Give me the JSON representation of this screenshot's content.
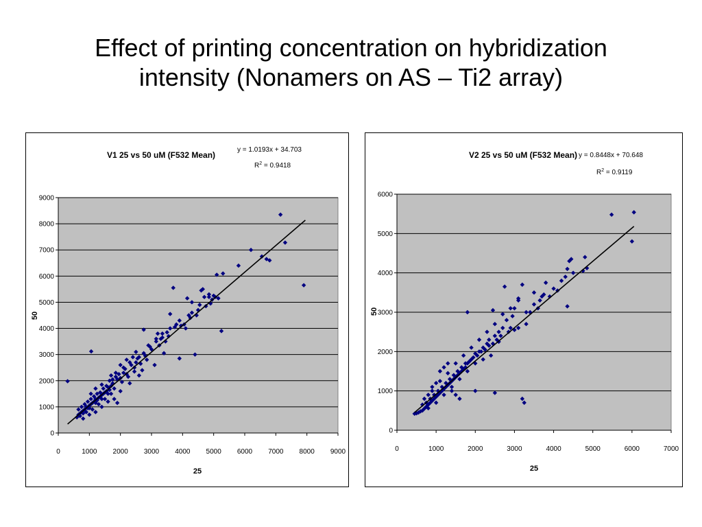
{
  "slide": {
    "title_line1": "Effect of printing concentration on hybridization",
    "title_line2": "intensity (Nonamers on AS – Ti2 array)"
  },
  "colors": {
    "plot_bg": "#c0c0c0",
    "marker": "#000080",
    "trendline": "#000000",
    "gridline": "#000000"
  },
  "chart_data": [
    {
      "type": "scatter",
      "title": "V1 25 vs 50 uM (F532 Mean)",
      "equation": "y = 1.0193x + 34.703",
      "r2_label": "R",
      "r2_sup": "2",
      "r2_value": " = 0.9418",
      "xlabel": "25",
      "ylabel": "50",
      "xlim": [
        0,
        9000
      ],
      "ylim": [
        0,
        9000
      ],
      "xticks": [
        "0",
        "1000",
        "2000",
        "3000",
        "4000",
        "5000",
        "6000",
        "7000",
        "8000",
        "9000"
      ],
      "yticks": [
        "0",
        "1000",
        "2000",
        "3000",
        "4000",
        "5000",
        "6000",
        "7000",
        "8000",
        "9000"
      ],
      "grid": "horizontal",
      "legend": "none",
      "trendline": {
        "slope": 1.0193,
        "intercept": 34.703,
        "x_range": [
          300,
          7950
        ]
      },
      "points": [
        [
          300,
          1980
        ],
        [
          1060,
          3120
        ],
        [
          7150,
          8350
        ],
        [
          7900,
          5650
        ],
        [
          7300,
          7280
        ],
        [
          6200,
          7000
        ],
        [
          6550,
          6750
        ],
        [
          6700,
          6650
        ],
        [
          6800,
          6600
        ],
        [
          5800,
          6400
        ],
        [
          5100,
          6050
        ],
        [
          5300,
          6100
        ],
        [
          5250,
          3900
        ],
        [
          4400,
          3000
        ],
        [
          3900,
          2850
        ],
        [
          3700,
          5550
        ],
        [
          4600,
          5450
        ],
        [
          4850,
          5300
        ],
        [
          4650,
          5500
        ],
        [
          4850,
          5200
        ],
        [
          5000,
          5250
        ],
        [
          5150,
          5150
        ],
        [
          4700,
          5200
        ],
        [
          4900,
          4950
        ],
        [
          4200,
          4500
        ],
        [
          4300,
          5000
        ],
        [
          4500,
          4700
        ],
        [
          4150,
          5150
        ],
        [
          4050,
          4150
        ],
        [
          4100,
          4000
        ],
        [
          3800,
          4150
        ],
        [
          3600,
          4550
        ],
        [
          3500,
          3850
        ],
        [
          3350,
          3800
        ],
        [
          3200,
          3800
        ],
        [
          3150,
          3600
        ],
        [
          3000,
          3200
        ],
        [
          2800,
          2950
        ],
        [
          2750,
          3950
        ],
        [
          2600,
          2900
        ],
        [
          2500,
          2700
        ],
        [
          2450,
          2500
        ],
        [
          2300,
          2700
        ],
        [
          2200,
          2250
        ],
        [
          2100,
          2300
        ],
        [
          2000,
          2100
        ],
        [
          1900,
          2050
        ],
        [
          1850,
          2150
        ],
        [
          1750,
          1900
        ],
        [
          1700,
          1800
        ],
        [
          1650,
          1650
        ],
        [
          1600,
          1750
        ],
        [
          1550,
          1600
        ],
        [
          1500,
          1550
        ],
        [
          1450,
          1500
        ],
        [
          1400,
          1450
        ],
        [
          1350,
          1400
        ],
        [
          1300,
          1350
        ],
        [
          1250,
          1250
        ],
        [
          1200,
          1300
        ],
        [
          1150,
          1200
        ],
        [
          1100,
          1150
        ],
        [
          1050,
          1100
        ],
        [
          1000,
          1050
        ],
        [
          950,
          950
        ],
        [
          900,
          1000
        ],
        [
          850,
          900
        ],
        [
          800,
          850
        ],
        [
          750,
          800
        ],
        [
          700,
          750
        ],
        [
          650,
          700
        ],
        [
          600,
          600
        ],
        [
          650,
          900
        ],
        [
          1050,
          1500
        ],
        [
          1200,
          1700
        ],
        [
          1400,
          1850
        ],
        [
          1700,
          2200
        ],
        [
          2000,
          2600
        ],
        [
          2200,
          2800
        ],
        [
          2500,
          3100
        ],
        [
          2900,
          3350
        ],
        [
          3300,
          3600
        ],
        [
          3600,
          4000
        ],
        [
          3900,
          4300
        ],
        [
          4300,
          4600
        ],
        [
          2300,
          1900
        ],
        [
          2000,
          1600
        ],
        [
          1800,
          1300
        ],
        [
          1600,
          1200
        ],
        [
          1400,
          1000
        ],
        [
          1200,
          800
        ],
        [
          1000,
          700
        ],
        [
          800,
          550
        ],
        [
          1900,
          1150
        ],
        [
          2700,
          2400
        ],
        [
          3400,
          3050
        ],
        [
          3100,
          2600
        ],
        [
          2600,
          2200
        ],
        [
          1700,
          1500
        ],
        [
          1500,
          1300
        ],
        [
          1300,
          1100
        ],
        [
          1100,
          900
        ],
        [
          900,
          800
        ],
        [
          700,
          650
        ],
        [
          950,
          1200
        ],
        [
          1150,
          1400
        ],
        [
          1350,
          1550
        ],
        [
          1550,
          1800
        ],
        [
          1750,
          2050
        ],
        [
          1950,
          2250
        ],
        [
          2150,
          2450
        ],
        [
          2350,
          2600
        ],
        [
          2550,
          2850
        ],
        [
          2750,
          3050
        ],
        [
          2950,
          3300
        ],
        [
          3150,
          3500
        ],
        [
          3350,
          3650
        ],
        [
          3550,
          3700
        ],
        [
          3750,
          4050
        ],
        [
          3950,
          4100
        ],
        [
          4250,
          4400
        ],
        [
          4450,
          4500
        ],
        [
          4550,
          4900
        ],
        [
          2400,
          2900
        ],
        [
          2100,
          2500
        ],
        [
          1850,
          2300
        ],
        [
          1650,
          2000
        ],
        [
          1450,
          1700
        ],
        [
          1250,
          1500
        ],
        [
          1050,
          1300
        ],
        [
          850,
          1100
        ],
        [
          750,
          1000
        ],
        [
          3250,
          3350
        ],
        [
          3450,
          3500
        ],
        [
          2850,
          2800
        ],
        [
          2650,
          2650
        ],
        [
          2450,
          2350
        ],
        [
          2250,
          2150
        ],
        [
          2050,
          1950
        ],
        [
          1800,
          1700
        ],
        [
          1600,
          1500
        ],
        [
          1400,
          1300
        ],
        [
          1200,
          1150
        ],
        [
          1000,
          950
        ],
        [
          800,
          750
        ],
        [
          4950,
          5100
        ],
        [
          5050,
          5200
        ],
        [
          4750,
          4850
        ]
      ]
    },
    {
      "type": "scatter",
      "title": "V2 25 vs 50 uM (F532 Mean)",
      "equation": "y = 0.8448x + 70.648",
      "r2_label": "R",
      "r2_sup": "2",
      "r2_value": " = 0.9119",
      "xlabel": "25",
      "ylabel": "50",
      "xlim": [
        0,
        7000
      ],
      "ylim": [
        0,
        6000
      ],
      "xticks": [
        "0",
        "1000",
        "2000",
        "3000",
        "4000",
        "5000",
        "6000",
        "7000"
      ],
      "yticks": [
        "0",
        "1000",
        "2000",
        "3000",
        "4000",
        "5000",
        "6000"
      ],
      "grid": "horizontal",
      "legend": "none",
      "trendline": {
        "slope": 0.8448,
        "intercept": 70.648,
        "x_range": [
          450,
          6050
        ]
      },
      "points": [
        [
          5480,
          5480
        ],
        [
          6050,
          5540
        ],
        [
          6000,
          4800
        ],
        [
          4800,
          4400
        ],
        [
          4850,
          4120
        ],
        [
          4750,
          4050
        ],
        [
          4450,
          4350
        ],
        [
          4400,
          4300
        ],
        [
          4350,
          4100
        ],
        [
          4300,
          3900
        ],
        [
          4350,
          3150
        ],
        [
          4000,
          3600
        ],
        [
          3750,
          3450
        ],
        [
          3700,
          3400
        ],
        [
          3650,
          3300
        ],
        [
          3500,
          3200
        ],
        [
          3300,
          3000
        ],
        [
          3200,
          3700
        ],
        [
          3100,
          3300
        ],
        [
          3000,
          3100
        ],
        [
          2950,
          2900
        ],
        [
          2800,
          2800
        ],
        [
          2750,
          3650
        ],
        [
          2700,
          2600
        ],
        [
          2600,
          2500
        ],
        [
          2500,
          2400
        ],
        [
          2450,
          3050
        ],
        [
          2350,
          2300
        ],
        [
          2300,
          2200
        ],
        [
          2200,
          2100
        ],
        [
          2100,
          2000
        ],
        [
          2000,
          1950
        ],
        [
          1900,
          1800
        ],
        [
          1800,
          3000
        ],
        [
          1800,
          1700
        ],
        [
          1750,
          1600
        ],
        [
          1700,
          1550
        ],
        [
          1650,
          1500
        ],
        [
          1600,
          1450
        ],
        [
          1550,
          1400
        ],
        [
          1500,
          1350
        ],
        [
          1450,
          1300
        ],
        [
          1400,
          1250
        ],
        [
          1350,
          1200
        ],
        [
          1300,
          1150
        ],
        [
          1250,
          1100
        ],
        [
          1200,
          1050
        ],
        [
          1150,
          1000
        ],
        [
          1100,
          950
        ],
        [
          1050,
          900
        ],
        [
          1000,
          850
        ],
        [
          950,
          800
        ],
        [
          900,
          750
        ],
        [
          850,
          700
        ],
        [
          800,
          650
        ],
        [
          750,
          600
        ],
        [
          700,
          550
        ],
        [
          650,
          500
        ],
        [
          600,
          480
        ],
        [
          550,
          450
        ],
        [
          500,
          430
        ],
        [
          450,
          420
        ],
        [
          1100,
          1500
        ],
        [
          1200,
          1600
        ],
        [
          1300,
          1700
        ],
        [
          1000,
          1200
        ],
        [
          900,
          1100
        ],
        [
          800,
          900
        ],
        [
          1400,
          1000
        ],
        [
          1500,
          900
        ],
        [
          1600,
          800
        ],
        [
          2000,
          1000
        ],
        [
          2500,
          950
        ],
        [
          3200,
          800
        ],
        [
          3250,
          700
        ],
        [
          3100,
          2600
        ],
        [
          3300,
          2700
        ],
        [
          3500,
          3500
        ],
        [
          3800,
          3750
        ],
        [
          4200,
          3800
        ],
        [
          4500,
          4000
        ],
        [
          2900,
          2600
        ],
        [
          2600,
          2250
        ],
        [
          2400,
          1900
        ],
        [
          2200,
          1800
        ],
        [
          2000,
          1700
        ],
        [
          1800,
          1500
        ],
        [
          1600,
          1300
        ],
        [
          1400,
          1100
        ],
        [
          1200,
          900
        ],
        [
          1000,
          700
        ],
        [
          800,
          560
        ],
        [
          1900,
          2100
        ],
        [
          2100,
          2300
        ],
        [
          2300,
          2500
        ],
        [
          2500,
          2700
        ],
        [
          2700,
          2950
        ],
        [
          2900,
          3100
        ],
        [
          3100,
          3350
        ],
        [
          1700,
          1900
        ],
        [
          1500,
          1700
        ],
        [
          1300,
          1450
        ],
        [
          1100,
          1250
        ],
        [
          900,
          1000
        ],
        [
          700,
          800
        ],
        [
          650,
          650
        ],
        [
          750,
          700
        ],
        [
          850,
          800
        ],
        [
          950,
          900
        ],
        [
          1050,
          1000
        ],
        [
          1150,
          1100
        ],
        [
          1250,
          1200
        ],
        [
          1350,
          1300
        ],
        [
          1450,
          1400
        ],
        [
          1550,
          1500
        ],
        [
          1650,
          1600
        ],
        [
          1750,
          1700
        ],
        [
          1850,
          1750
        ],
        [
          1950,
          1850
        ],
        [
          2050,
          1900
        ],
        [
          2150,
          2000
        ],
        [
          2250,
          2050
        ],
        [
          2350,
          2150
        ],
        [
          2450,
          2200
        ],
        [
          2550,
          2300
        ],
        [
          2650,
          2400
        ],
        [
          2850,
          2500
        ],
        [
          3000,
          2550
        ],
        [
          3400,
          3000
        ],
        [
          3600,
          3100
        ],
        [
          3900,
          3400
        ],
        [
          4100,
          3550
        ]
      ]
    }
  ]
}
